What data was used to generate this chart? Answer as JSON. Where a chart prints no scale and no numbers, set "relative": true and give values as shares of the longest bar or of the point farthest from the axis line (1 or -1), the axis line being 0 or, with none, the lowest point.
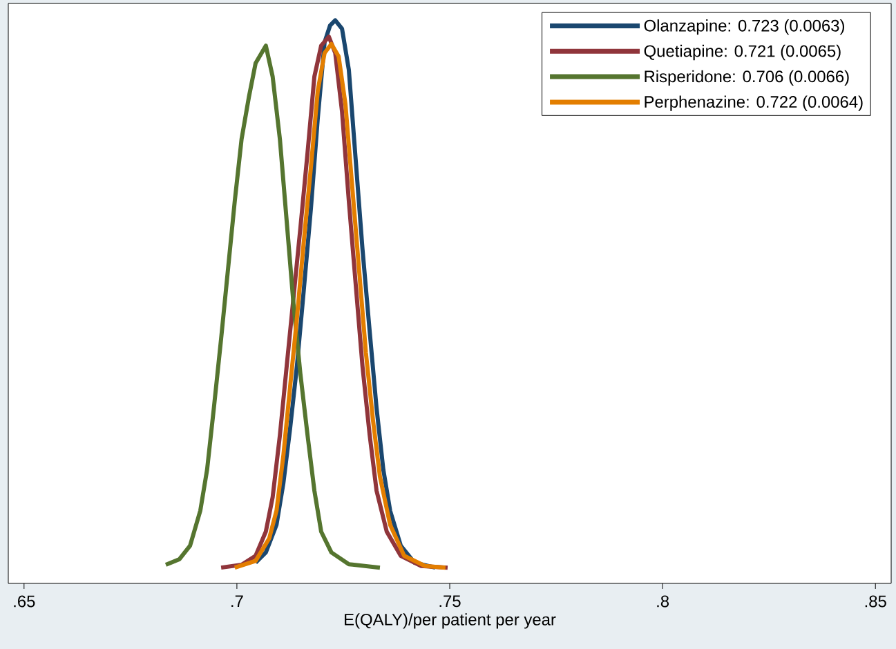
{
  "chart_data": {
    "type": "line",
    "relative": true,
    "xlabel": "E(QALY)/per patient per year",
    "xlim": [
      0.6463,
      0.8537
    ],
    "xticks": [
      {
        "value": 0.65,
        "label": ".65"
      },
      {
        "value": 0.7,
        "label": ".7"
      },
      {
        "value": 0.75,
        "label": ".75"
      },
      {
        "value": 0.8,
        "label": ".8"
      },
      {
        "value": 0.85,
        "label": ".85"
      }
    ],
    "legend": "top right",
    "grid": false,
    "series": [
      {
        "name": "Olanzapine: 0.723 (0.0063)",
        "color": "#1a476f",
        "x": [
          0.7044,
          0.7068,
          0.7093,
          0.7109,
          0.7125,
          0.7141,
          0.7157,
          0.7174,
          0.719,
          0.7206,
          0.7219,
          0.7231,
          0.7247,
          0.7263,
          0.7279,
          0.7295,
          0.7312,
          0.7328,
          0.7344,
          0.736,
          0.7385,
          0.7417,
          0.7466
        ],
        "values": [
          0.037,
          0.055,
          0.104,
          0.177,
          0.275,
          0.386,
          0.52,
          0.667,
          0.826,
          0.961,
          0.991,
          1.0,
          0.985,
          0.912,
          0.753,
          0.594,
          0.447,
          0.312,
          0.202,
          0.129,
          0.067,
          0.037,
          0.028
        ]
      },
      {
        "name": "Quetiapine: 0.721 (0.0065)",
        "color": "#90353b",
        "x": [
          0.6963,
          0.7011,
          0.7044,
          0.7068,
          0.7084,
          0.7101,
          0.7117,
          0.7133,
          0.7149,
          0.7166,
          0.7182,
          0.7198,
          0.7216,
          0.7231,
          0.7247,
          0.7263,
          0.7279,
          0.7295,
          0.7312,
          0.7328,
          0.7352,
          0.7385,
          0.7433,
          0.7495
        ],
        "values": [
          0.028,
          0.033,
          0.049,
          0.092,
          0.153,
          0.263,
          0.386,
          0.508,
          0.63,
          0.765,
          0.9,
          0.955,
          0.971,
          0.942,
          0.838,
          0.679,
          0.532,
          0.386,
          0.263,
          0.165,
          0.092,
          0.049,
          0.031,
          0.028
        ]
      },
      {
        "name": "Risperidone: 0.706 (0.0066)",
        "color": "#55752f",
        "x": [
          0.6833,
          0.6865,
          0.689,
          0.6914,
          0.693,
          0.6946,
          0.6963,
          0.6979,
          0.6995,
          0.7011,
          0.7028,
          0.7044,
          0.7068,
          0.7084,
          0.7101,
          0.7117,
          0.7133,
          0.7149,
          0.7166,
          0.7182,
          0.7198,
          0.7222,
          0.7263,
          0.7336
        ],
        "values": [
          0.033,
          0.043,
          0.067,
          0.129,
          0.202,
          0.312,
          0.435,
          0.557,
          0.679,
          0.789,
          0.863,
          0.924,
          0.955,
          0.9,
          0.789,
          0.643,
          0.496,
          0.373,
          0.263,
          0.165,
          0.092,
          0.055,
          0.034,
          0.028
        ]
      },
      {
        "name": "Perphenazine: 0.722 (0.0064)",
        "color": "#e37e00",
        "x": [
          0.6995,
          0.7044,
          0.7076,
          0.7093,
          0.7109,
          0.7125,
          0.7141,
          0.7157,
          0.7174,
          0.719,
          0.7206,
          0.7222,
          0.7239,
          0.7255,
          0.7271,
          0.7287,
          0.7303,
          0.732,
          0.7336,
          0.736,
          0.7393,
          0.7442,
          0.749
        ],
        "values": [
          0.028,
          0.04,
          0.08,
          0.129,
          0.226,
          0.349,
          0.471,
          0.606,
          0.74,
          0.875,
          0.942,
          0.958,
          0.936,
          0.851,
          0.704,
          0.557,
          0.41,
          0.288,
          0.19,
          0.104,
          0.049,
          0.031,
          0.028
        ]
      }
    ]
  }
}
